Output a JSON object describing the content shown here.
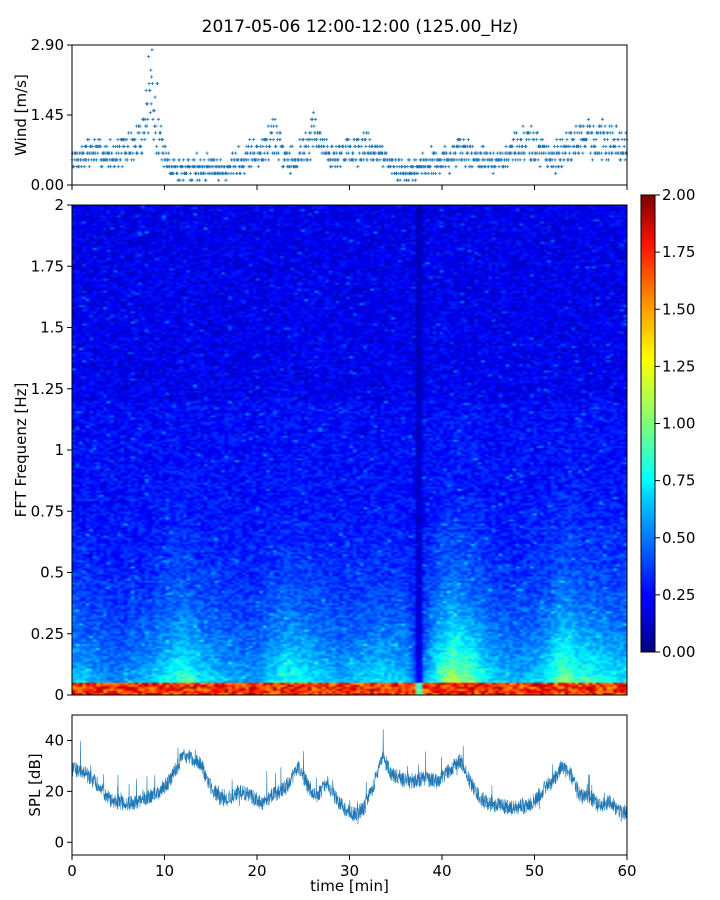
{
  "title": "2017-05-06 12:00-12:00 (125.00_Hz)",
  "colors": {
    "series": "#1f77b4",
    "colormap": "jet"
  },
  "chart_data": [
    {
      "type": "scatter",
      "name": "wind",
      "ylabel": "Wind [m/s]",
      "xlim": [
        0,
        60
      ],
      "ylim": [
        0,
        2.9
      ],
      "yticks": [
        "0.00",
        "1.45",
        "2.90"
      ],
      "marker": "+",
      "quantized_levels": [
        0.1,
        0.24,
        0.38,
        0.52,
        0.66,
        0.8,
        0.94,
        1.08,
        1.22,
        1.36,
        1.5
      ],
      "profile": [
        [
          0,
          0.5
        ],
        [
          2,
          0.7
        ],
        [
          4,
          0.6
        ],
        [
          6,
          0.75
        ],
        [
          7,
          0.85
        ],
        [
          8,
          1.3
        ],
        [
          8.5,
          1.9
        ],
        [
          9,
          1.2
        ],
        [
          10,
          0.6
        ],
        [
          11,
          0.3
        ],
        [
          13,
          0.35
        ],
        [
          15,
          0.4
        ],
        [
          17,
          0.3
        ],
        [
          19,
          0.6
        ],
        [
          21,
          0.8
        ],
        [
          22,
          1.0
        ],
        [
          23,
          0.6
        ],
        [
          24,
          0.5
        ],
        [
          25,
          0.7
        ],
        [
          26,
          1.1
        ],
        [
          27,
          0.8
        ],
        [
          28,
          0.6
        ],
        [
          30,
          0.7
        ],
        [
          32,
          0.8
        ],
        [
          34,
          0.55
        ],
        [
          35,
          0.3
        ],
        [
          37,
          0.3
        ],
        [
          39,
          0.5
        ],
        [
          40,
          0.5
        ],
        [
          42,
          0.7
        ],
        [
          44,
          0.6
        ],
        [
          45,
          0.5
        ],
        [
          46,
          0.45
        ],
        [
          47,
          0.6
        ],
        [
          48,
          0.8
        ],
        [
          50,
          0.8
        ],
        [
          52,
          0.6
        ],
        [
          54,
          0.8
        ],
        [
          56,
          1.0
        ],
        [
          58,
          0.9
        ],
        [
          60,
          0.8
        ]
      ]
    },
    {
      "type": "heatmap",
      "name": "spectrogram",
      "ylabel": "FFT Frequenz [Hz]",
      "xlim": [
        0,
        60
      ],
      "ylim": [
        0,
        2
      ],
      "yticks": [
        "0",
        "0.25",
        "0.5",
        "0.75",
        "1",
        "1.25",
        "1.5",
        "1.75",
        "2"
      ],
      "colorbar": {
        "range": [
          0,
          2
        ],
        "ticks": [
          "0.00",
          "0.25",
          "0.50",
          "0.75",
          "1.00",
          "1.25",
          "1.50",
          "1.75",
          "2.00"
        ]
      },
      "low_frequency_band_hz": 0.05,
      "dark_time_min": 37.5,
      "activity_profile": [
        [
          0,
          0.4
        ],
        [
          5,
          0.25
        ],
        [
          8,
          0.35
        ],
        [
          12,
          0.6
        ],
        [
          14,
          0.45
        ],
        [
          17,
          0.35
        ],
        [
          20,
          0.3
        ],
        [
          23,
          0.55
        ],
        [
          26,
          0.45
        ],
        [
          29,
          0.35
        ],
        [
          33,
          0.45
        ],
        [
          36,
          0.4
        ],
        [
          37.5,
          0.15
        ],
        [
          39,
          0.5
        ],
        [
          41,
          0.85
        ],
        [
          43,
          0.7
        ],
        [
          45,
          0.45
        ],
        [
          48,
          0.35
        ],
        [
          51,
          0.45
        ],
        [
          53,
          0.75
        ],
        [
          55,
          0.6
        ],
        [
          58,
          0.5
        ],
        [
          60,
          0.45
        ]
      ]
    },
    {
      "type": "line",
      "name": "spl",
      "ylabel": "SPL [dB]",
      "xlabel": "time [min]",
      "xlim": [
        0,
        60
      ],
      "ylim": [
        -5,
        50
      ],
      "xticks": [
        "0",
        "10",
        "20",
        "30",
        "40",
        "50",
        "60"
      ],
      "yticks": [
        "0",
        "20",
        "40"
      ],
      "profile": [
        [
          0,
          29
        ],
        [
          1.5,
          27
        ],
        [
          3,
          22
        ],
        [
          4,
          17
        ],
        [
          6,
          15
        ],
        [
          8,
          17
        ],
        [
          9.5,
          20
        ],
        [
          10.5,
          24
        ],
        [
          12,
          34
        ],
        [
          13,
          33
        ],
        [
          14,
          30
        ],
        [
          15,
          22
        ],
        [
          16,
          17
        ],
        [
          17,
          17
        ],
        [
          18,
          20
        ],
        [
          19.5,
          18
        ],
        [
          20.5,
          15
        ],
        [
          21.5,
          18
        ],
        [
          22.5,
          20
        ],
        [
          23.5,
          23
        ],
        [
          24.5,
          30
        ],
        [
          25.5,
          22
        ],
        [
          26.5,
          18
        ],
        [
          27.5,
          24
        ],
        [
          28.5,
          17
        ],
        [
          29.5,
          13
        ],
        [
          30.5,
          11
        ],
        [
          31.5,
          13
        ],
        [
          32.5,
          21
        ],
        [
          33.5,
          34
        ],
        [
          34.5,
          27
        ],
        [
          35.5,
          25
        ],
        [
          36.5,
          24
        ],
        [
          38,
          25
        ],
        [
          39.5,
          24
        ],
        [
          41,
          29
        ],
        [
          42,
          32
        ],
        [
          43,
          24
        ],
        [
          44,
          18
        ],
        [
          45,
          15
        ],
        [
          47,
          14
        ],
        [
          49,
          14
        ],
        [
          50,
          16
        ],
        [
          51,
          21
        ],
        [
          52,
          24
        ],
        [
          53,
          30
        ],
        [
          54,
          26
        ],
        [
          55,
          18
        ],
        [
          56,
          18
        ],
        [
          57,
          14
        ],
        [
          58,
          16
        ],
        [
          59,
          13
        ],
        [
          60,
          11
        ]
      ]
    }
  ]
}
